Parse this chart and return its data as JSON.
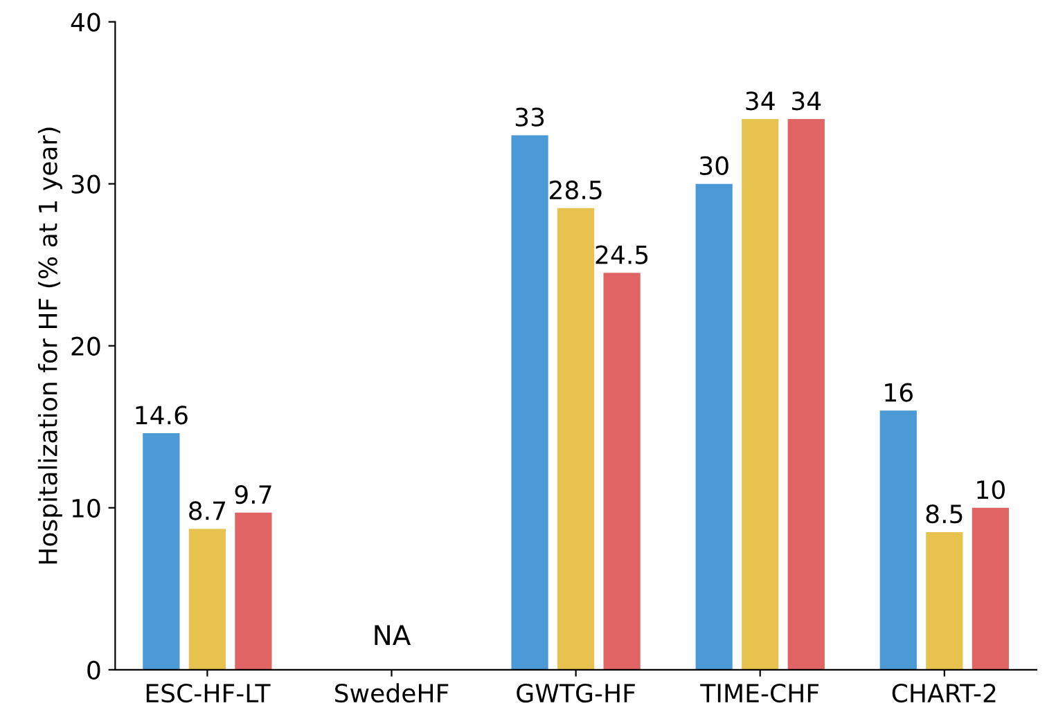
{
  "chart_data": {
    "type": "bar",
    "ylabel": "Hospitalization for HF (% at 1 year)",
    "categories": [
      "ESC-HF-LT",
      "SwedeHF",
      "GWTG-HF",
      "TIME-CHF",
      "CHART-2"
    ],
    "series": [
      {
        "color": "#4b9ad6",
        "values": [
          14.6,
          null,
          33,
          30,
          16
        ]
      },
      {
        "color": "#e8c24e",
        "values": [
          8.7,
          null,
          28.5,
          34,
          8.5
        ]
      },
      {
        "color": "#e06464",
        "values": [
          9.7,
          null,
          24.5,
          34,
          10
        ]
      }
    ],
    "ylim": [
      0,
      40
    ],
    "yticks": [
      0,
      10,
      20,
      30,
      40
    ],
    "data_labels": true,
    "grid": false,
    "legend": false,
    "annotations": [
      "NA"
    ]
  }
}
